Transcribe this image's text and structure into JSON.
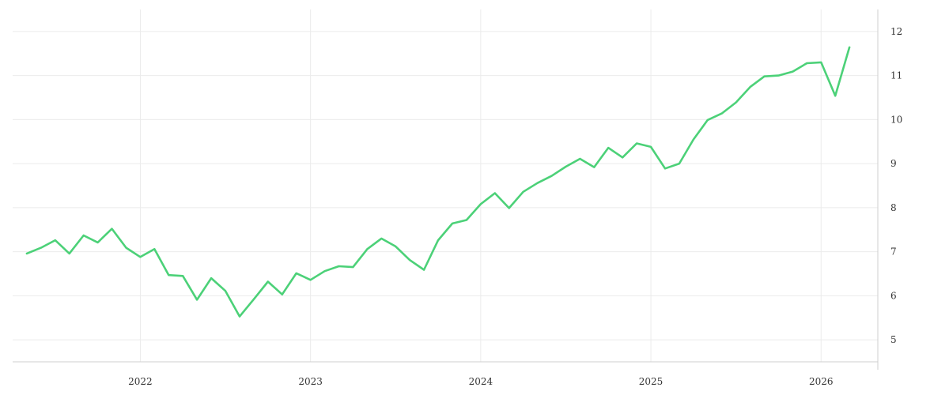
{
  "chart_data": {
    "type": "line",
    "title": "",
    "xlabel": "",
    "ylabel": "",
    "x_ticks": [
      "2022",
      "2023",
      "2024",
      "2025",
      "2026"
    ],
    "y_ticks": [
      "5",
      "6",
      "7",
      "8",
      "9",
      "10",
      "11",
      "12"
    ],
    "xlim": [
      "2021-04",
      "2026-05"
    ],
    "ylim": [
      4.5,
      12.5
    ],
    "y_axis_position": "right",
    "grid": true,
    "legend": "none",
    "series": [
      {
        "color": "#4cd178",
        "points": [
          {
            "x": "2021-05",
            "y": 6.96
          },
          {
            "x": "2021-06",
            "y": 7.09
          },
          {
            "x": "2021-07",
            "y": 7.26
          },
          {
            "x": "2021-08",
            "y": 6.96
          },
          {
            "x": "2021-09",
            "y": 7.37
          },
          {
            "x": "2021-10",
            "y": 7.21
          },
          {
            "x": "2021-11",
            "y": 7.52
          },
          {
            "x": "2021-12",
            "y": 7.09
          },
          {
            "x": "2022-01",
            "y": 6.88
          },
          {
            "x": "2022-02",
            "y": 7.06
          },
          {
            "x": "2022-03",
            "y": 6.47
          },
          {
            "x": "2022-04",
            "y": 6.45
          },
          {
            "x": "2022-05",
            "y": 5.91
          },
          {
            "x": "2022-06",
            "y": 6.4
          },
          {
            "x": "2022-07",
            "y": 6.11
          },
          {
            "x": "2022-08",
            "y": 5.53
          },
          {
            "x": "2022-09",
            "y": 5.92
          },
          {
            "x": "2022-10",
            "y": 6.32
          },
          {
            "x": "2022-11",
            "y": 6.03
          },
          {
            "x": "2022-12",
            "y": 6.51
          },
          {
            "x": "2023-01",
            "y": 6.36
          },
          {
            "x": "2023-02",
            "y": 6.56
          },
          {
            "x": "2023-03",
            "y": 6.67
          },
          {
            "x": "2023-04",
            "y": 6.65
          },
          {
            "x": "2023-05",
            "y": 7.06
          },
          {
            "x": "2023-06",
            "y": 7.3
          },
          {
            "x": "2023-07",
            "y": 7.12
          },
          {
            "x": "2023-08",
            "y": 6.81
          },
          {
            "x": "2023-09",
            "y": 6.59
          },
          {
            "x": "2023-10",
            "y": 7.26
          },
          {
            "x": "2023-11",
            "y": 7.64
          },
          {
            "x": "2023-12",
            "y": 7.72
          },
          {
            "x": "2024-01",
            "y": 8.08
          },
          {
            "x": "2024-02",
            "y": 8.33
          },
          {
            "x": "2024-03",
            "y": 7.99
          },
          {
            "x": "2024-04",
            "y": 8.36
          },
          {
            "x": "2024-05",
            "y": 8.56
          },
          {
            "x": "2024-06",
            "y": 8.72
          },
          {
            "x": "2024-07",
            "y": 8.93
          },
          {
            "x": "2024-08",
            "y": 9.11
          },
          {
            "x": "2024-09",
            "y": 8.92
          },
          {
            "x": "2024-10",
            "y": 9.36
          },
          {
            "x": "2024-11",
            "y": 9.14
          },
          {
            "x": "2024-12",
            "y": 9.46
          },
          {
            "x": "2025-01",
            "y": 9.38
          },
          {
            "x": "2025-02",
            "y": 8.89
          },
          {
            "x": "2025-03",
            "y": 9.0
          },
          {
            "x": "2025-04",
            "y": 9.55
          },
          {
            "x": "2025-05",
            "y": 9.99
          },
          {
            "x": "2025-06",
            "y": 10.14
          },
          {
            "x": "2025-07",
            "y": 10.39
          },
          {
            "x": "2025-08",
            "y": 10.74
          },
          {
            "x": "2025-09",
            "y": 10.98
          },
          {
            "x": "2025-10",
            "y": 11.0
          },
          {
            "x": "2025-11",
            "y": 11.09
          },
          {
            "x": "2025-12",
            "y": 11.28
          },
          {
            "x": "2026-01",
            "y": 11.3
          },
          {
            "x": "2026-02",
            "y": 10.54
          },
          {
            "x": "2026-03",
            "y": 11.64
          }
        ]
      }
    ]
  }
}
